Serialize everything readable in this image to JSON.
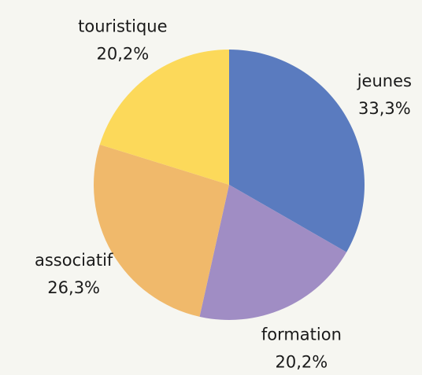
{
  "chart_data": {
    "type": "pie",
    "categories": [
      "jeunes",
      "formation",
      "associatif",
      "touristique"
    ],
    "values": [
      33.3,
      20.2,
      26.3,
      20.2
    ],
    "value_labels": [
      "33,3%",
      "20,2%",
      "26,3%",
      "20,2%"
    ],
    "colors": [
      "#5a7bbf",
      "#a08dc4",
      "#f0b96b",
      "#fcd95a"
    ]
  }
}
